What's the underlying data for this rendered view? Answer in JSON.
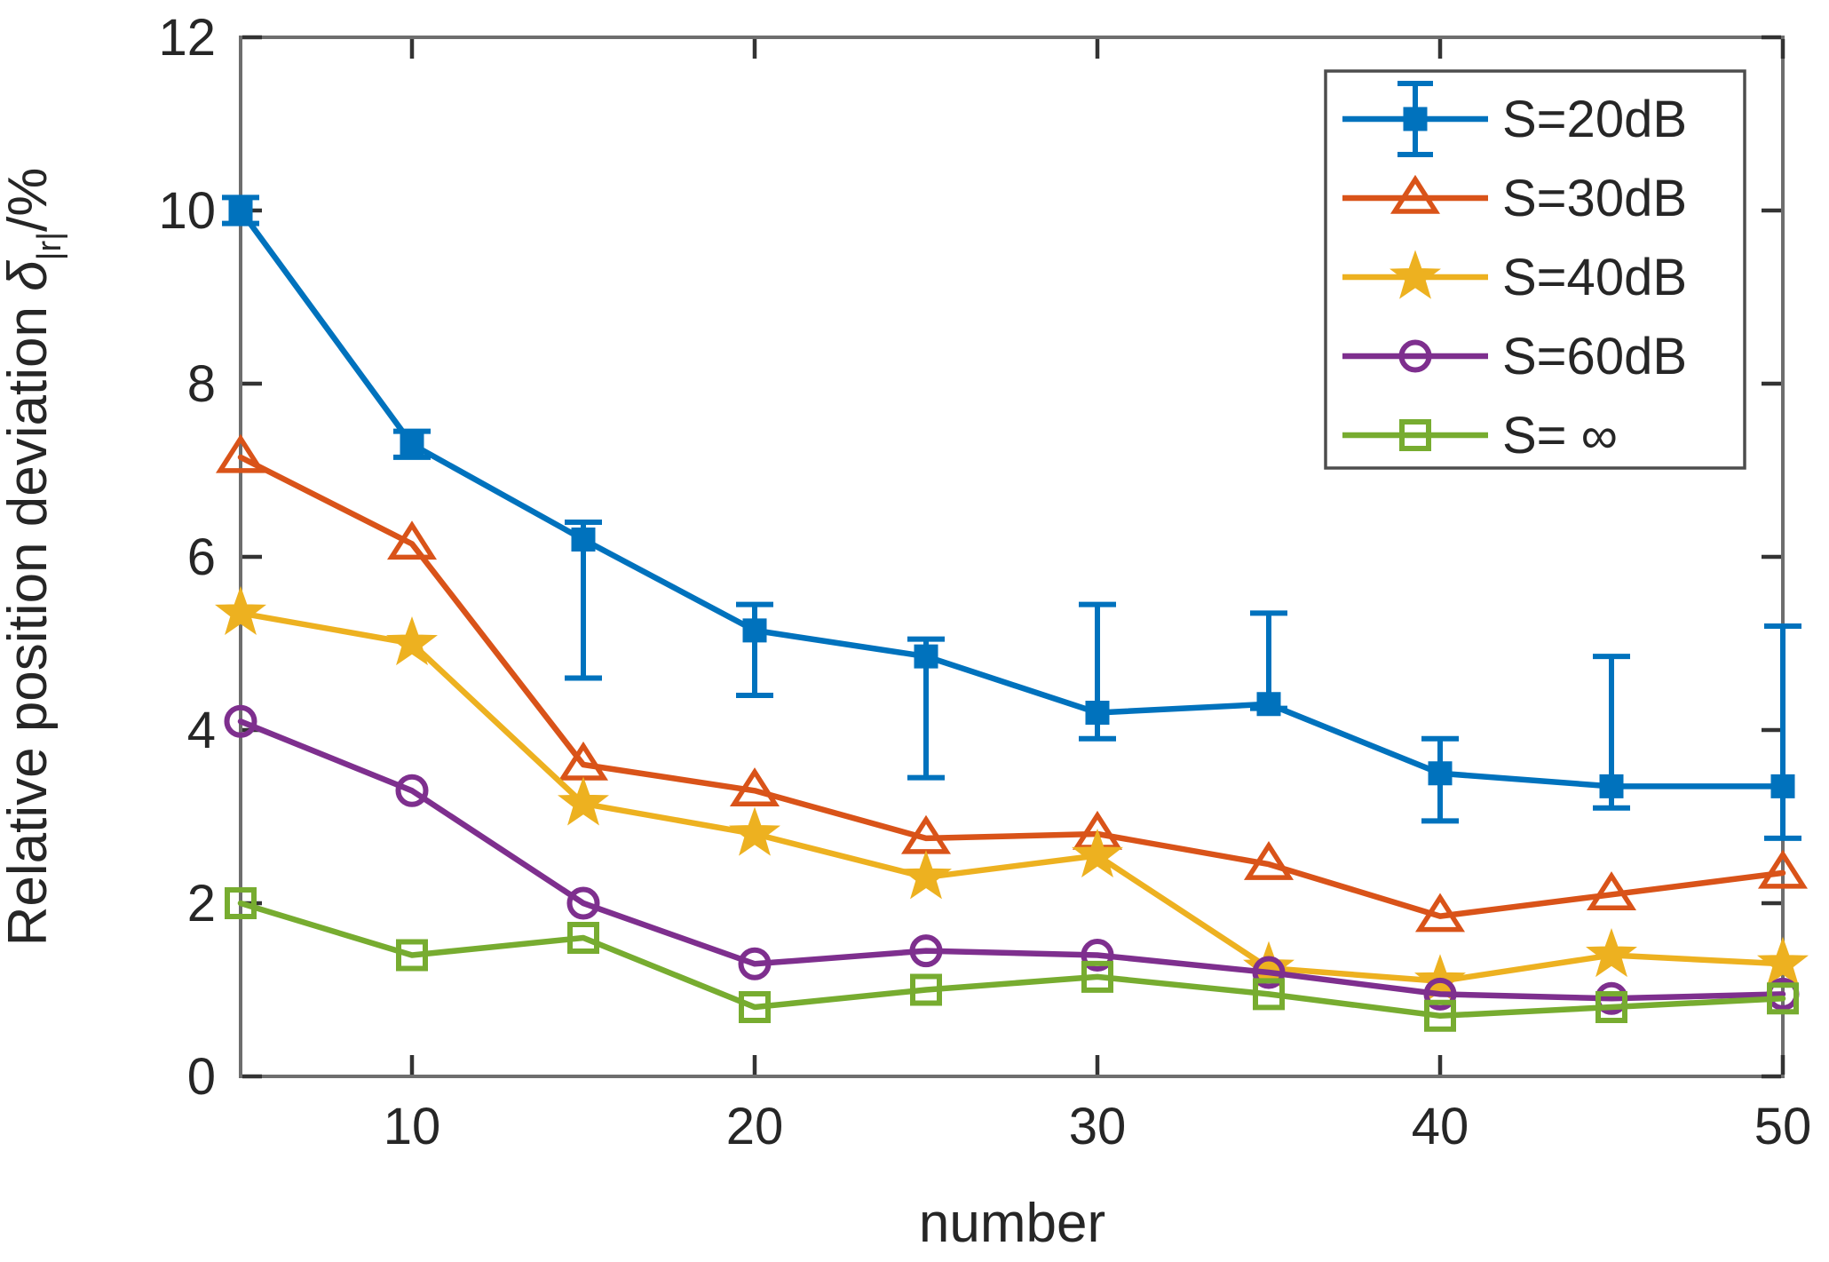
{
  "figure": {
    "xlabel": "number",
    "ylabel": {
      "text": "Relative position deviation ",
      "symbol": "δ",
      "subscript": "|r|",
      "unit": "/%"
    }
  },
  "chart_data": {
    "type": "line",
    "title": "",
    "xlabel": "number",
    "ylabel": "Relative position deviation δ_|r| /%",
    "xlim": [
      5,
      50
    ],
    "ylim": [
      0,
      12
    ],
    "xticks": [
      10,
      20,
      30,
      40,
      50
    ],
    "yticks": [
      0,
      2,
      4,
      6,
      8,
      10,
      12
    ],
    "grid": false,
    "legend_position": "top-right",
    "x": [
      5,
      10,
      15,
      20,
      25,
      30,
      35,
      40,
      45,
      50
    ],
    "series": [
      {
        "name": "S=20dB",
        "color": "#0072BD",
        "marker": "filled-square",
        "values": [
          10.0,
          7.3,
          6.2,
          5.15,
          4.85,
          4.2,
          4.3,
          3.5,
          3.35,
          3.35
        ],
        "err_hi": [
          10.15,
          7.45,
          6.4,
          5.45,
          5.05,
          5.45,
          5.35,
          3.9,
          4.85,
          5.2
        ],
        "err_lo": [
          9.85,
          7.15,
          4.6,
          4.4,
          3.45,
          3.9,
          4.25,
          2.95,
          3.1,
          2.75
        ]
      },
      {
        "name": "S=30dB",
        "color": "#D95319",
        "marker": "open-triangle",
        "values": [
          7.15,
          6.15,
          3.6,
          3.3,
          2.75,
          2.8,
          2.45,
          1.85,
          2.1,
          2.35
        ]
      },
      {
        "name": "S=40dB",
        "color": "#EDB120",
        "marker": "filled-star",
        "values": [
          5.35,
          5.0,
          3.15,
          2.8,
          2.3,
          2.55,
          1.25,
          1.1,
          1.4,
          1.3
        ]
      },
      {
        "name": "S=60dB",
        "color": "#7E2F8E",
        "marker": "open-circle",
        "values": [
          4.1,
          3.3,
          2.0,
          1.3,
          1.45,
          1.4,
          1.2,
          0.95,
          0.9,
          0.95
        ]
      },
      {
        "name": "S= ∞",
        "color": "#77AC30",
        "marker": "open-square",
        "values": [
          2.0,
          1.4,
          1.6,
          0.8,
          1.0,
          1.15,
          0.95,
          0.7,
          0.8,
          0.9
        ]
      }
    ],
    "style": {
      "frame_color": "#6e6e6e",
      "tick_color": "#333333",
      "text_color": "#262626"
    }
  }
}
